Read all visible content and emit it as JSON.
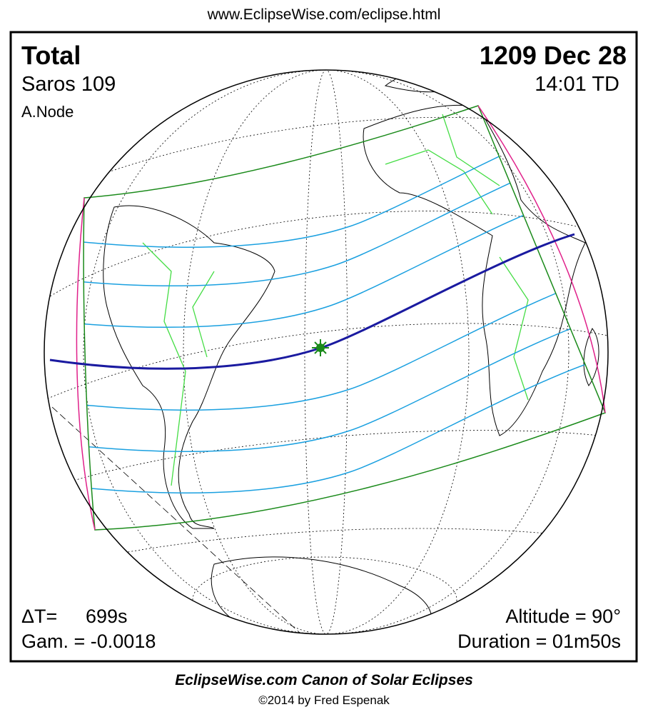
{
  "header": {
    "url": "www.EclipseWise.com/eclipse.html"
  },
  "top_left": {
    "type": "Total",
    "saros": "Saros 109",
    "node": "A.Node"
  },
  "top_right": {
    "date": "1209 Dec 28",
    "time": "14:01 TD"
  },
  "bottom_left": {
    "delta_t_label": "ΔT=",
    "delta_t_value": "699s",
    "gamma": "Gam. = -0.0018"
  },
  "bottom_right": {
    "altitude": "Altitude = 90°",
    "duration": "Duration = 01m50s"
  },
  "footer": {
    "title": "EclipseWise.com Canon of Solar Eclipses",
    "credit": "©2014 by Fred Espenak"
  }
}
